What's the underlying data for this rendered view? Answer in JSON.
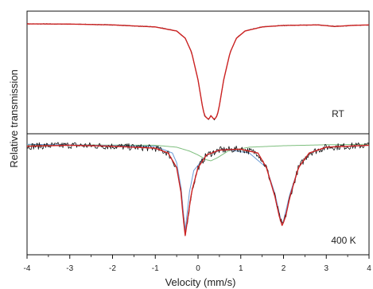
{
  "chart_data": [
    {
      "type": "line",
      "panel_label": "RT",
      "xlim": [
        -4,
        4
      ],
      "grid": false,
      "series": [
        {
          "role": "measured",
          "color": "#111111",
          "points": [
            [
              -4.0,
              1.0
            ],
            [
              -3.0,
              0.998
            ],
            [
              -2.0,
              0.99
            ],
            [
              -1.0,
              0.97
            ],
            [
              -0.5,
              0.93
            ],
            [
              -0.3,
              0.86
            ],
            [
              -0.15,
              0.72
            ],
            [
              0.0,
              0.45
            ],
            [
              0.1,
              0.2
            ],
            [
              0.15,
              0.1
            ],
            [
              0.25,
              0.06
            ],
            [
              0.3,
              0.1
            ],
            [
              0.38,
              0.06
            ],
            [
              0.45,
              0.1
            ],
            [
              0.5,
              0.2
            ],
            [
              0.6,
              0.45
            ],
            [
              0.75,
              0.72
            ],
            [
              0.9,
              0.86
            ],
            [
              1.1,
              0.93
            ],
            [
              1.5,
              0.97
            ],
            [
              2.0,
              0.985
            ],
            [
              2.8,
              0.99
            ],
            [
              3.2,
              0.975
            ],
            [
              3.6,
              0.985
            ],
            [
              4.0,
              0.99
            ]
          ]
        },
        {
          "role": "fit",
          "color": "#cc2222",
          "points": [
            [
              -4.0,
              1.0
            ],
            [
              -3.0,
              0.998
            ],
            [
              -2.0,
              0.99
            ],
            [
              -1.0,
              0.97
            ],
            [
              -0.5,
              0.93
            ],
            [
              -0.3,
              0.86
            ],
            [
              -0.15,
              0.72
            ],
            [
              0.0,
              0.45
            ],
            [
              0.1,
              0.2
            ],
            [
              0.15,
              0.1
            ],
            [
              0.25,
              0.06
            ],
            [
              0.3,
              0.1
            ],
            [
              0.38,
              0.06
            ],
            [
              0.45,
              0.1
            ],
            [
              0.5,
              0.2
            ],
            [
              0.6,
              0.45
            ],
            [
              0.75,
              0.72
            ],
            [
              0.9,
              0.86
            ],
            [
              1.1,
              0.93
            ],
            [
              1.5,
              0.97
            ],
            [
              2.0,
              0.985
            ],
            [
              2.8,
              0.99
            ],
            [
              3.2,
              0.975
            ],
            [
              3.6,
              0.985
            ],
            [
              4.0,
              0.99
            ]
          ]
        }
      ]
    },
    {
      "type": "line",
      "panel_label": "400 K",
      "xlim": [
        -4,
        4
      ],
      "xticks": [
        -4,
        -3,
        -2,
        -1,
        0,
        1,
        2,
        3,
        4
      ],
      "xlabel": "Velocity (mm/s)",
      "ylabel": "Relative transmission",
      "grid": false,
      "series": [
        {
          "role": "measured",
          "color": "#111111",
          "points": [
            [
              -4.0,
              0.97
            ],
            [
              -3.0,
              0.98
            ],
            [
              -2.0,
              0.97
            ],
            [
              -1.0,
              0.95
            ],
            [
              -0.7,
              0.9
            ],
            [
              -0.5,
              0.75
            ],
            [
              -0.4,
              0.5
            ],
            [
              -0.35,
              0.25
            ],
            [
              -0.3,
              0.05
            ],
            [
              -0.25,
              0.2
            ],
            [
              -0.15,
              0.5
            ],
            [
              0.0,
              0.75
            ],
            [
              0.2,
              0.88
            ],
            [
              0.5,
              0.93
            ],
            [
              1.0,
              0.94
            ],
            [
              1.4,
              0.9
            ],
            [
              1.6,
              0.75
            ],
            [
              1.8,
              0.45
            ],
            [
              1.9,
              0.25
            ],
            [
              1.97,
              0.15
            ],
            [
              2.05,
              0.25
            ],
            [
              2.15,
              0.45
            ],
            [
              2.35,
              0.75
            ],
            [
              2.6,
              0.9
            ],
            [
              3.0,
              0.96
            ],
            [
              4.0,
              0.98
            ]
          ]
        },
        {
          "role": "fit",
          "color": "#cc2222",
          "points": [
            [
              -4.0,
              0.97
            ],
            [
              -3.0,
              0.98
            ],
            [
              -2.0,
              0.97
            ],
            [
              -1.0,
              0.95
            ],
            [
              -0.7,
              0.9
            ],
            [
              -0.5,
              0.75
            ],
            [
              -0.4,
              0.5
            ],
            [
              -0.35,
              0.25
            ],
            [
              -0.3,
              0.05
            ],
            [
              -0.25,
              0.2
            ],
            [
              -0.15,
              0.5
            ],
            [
              0.0,
              0.75
            ],
            [
              0.2,
              0.88
            ],
            [
              0.5,
              0.93
            ],
            [
              1.0,
              0.94
            ],
            [
              1.4,
              0.9
            ],
            [
              1.6,
              0.75
            ],
            [
              1.8,
              0.45
            ],
            [
              1.9,
              0.25
            ],
            [
              1.97,
              0.15
            ],
            [
              2.05,
              0.25
            ],
            [
              2.15,
              0.45
            ],
            [
              2.35,
              0.75
            ],
            [
              2.6,
              0.9
            ],
            [
              3.0,
              0.96
            ],
            [
              4.0,
              0.98
            ]
          ]
        },
        {
          "role": "subspectrum",
          "color": "#7fbf7f",
          "points": [
            [
              -4.0,
              0.985
            ],
            [
              -1.0,
              0.98
            ],
            [
              -0.5,
              0.96
            ],
            [
              -0.2,
              0.92
            ],
            [
              0.0,
              0.88
            ],
            [
              0.2,
              0.83
            ],
            [
              0.3,
              0.82
            ],
            [
              0.45,
              0.85
            ],
            [
              0.7,
              0.92
            ],
            [
              1.2,
              0.96
            ],
            [
              2.0,
              0.975
            ],
            [
              3.0,
              0.985
            ],
            [
              4.0,
              0.99
            ]
          ]
        },
        {
          "role": "subspectrum",
          "color": "#6b9bd6",
          "points": [
            [
              -4.0,
              0.99
            ],
            [
              -1.0,
              0.97
            ],
            [
              -0.6,
              0.9
            ],
            [
              -0.5,
              0.8
            ],
            [
              -0.4,
              0.55
            ],
            [
              -0.3,
              0.1
            ],
            [
              -0.2,
              0.5
            ],
            [
              -0.1,
              0.72
            ],
            [
              0.2,
              0.88
            ],
            [
              0.6,
              0.94
            ],
            [
              1.2,
              0.9
            ],
            [
              1.6,
              0.75
            ],
            [
              1.8,
              0.48
            ],
            [
              1.97,
              0.15
            ],
            [
              2.15,
              0.48
            ],
            [
              2.35,
              0.75
            ],
            [
              2.6,
              0.9
            ],
            [
              3.0,
              0.96
            ],
            [
              4.0,
              0.98
            ]
          ]
        }
      ]
    }
  ]
}
